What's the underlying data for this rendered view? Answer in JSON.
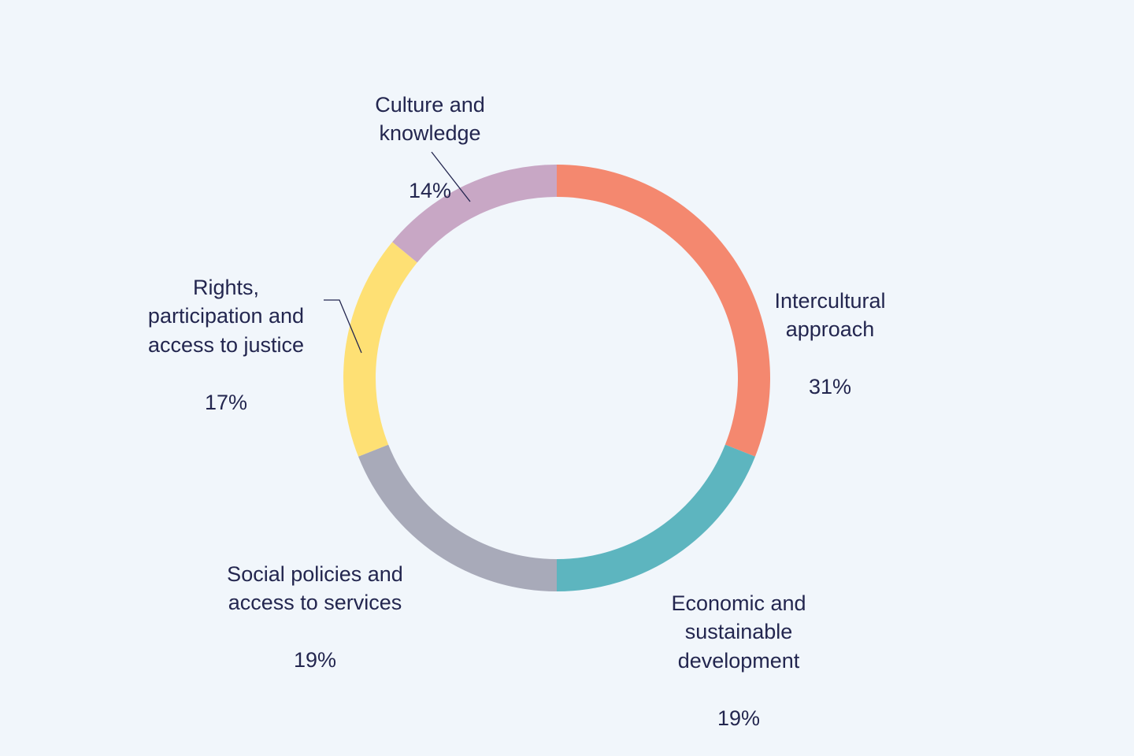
{
  "colors": {
    "background": "#f1f6fb",
    "text": "#23264f",
    "leader_line": "#23264f"
  },
  "chart_data": {
    "type": "pie",
    "variant": "donut",
    "start_angle_deg": 0,
    "direction": "clockwise",
    "slices": [
      {
        "label": "Intercultural\napproach",
        "value": 31,
        "value_text": "31%",
        "color": "#f4886f"
      },
      {
        "label": "Economic and\nsustainable\ndevelopment",
        "value": 19,
        "value_text": "19%",
        "color": "#5db5bf"
      },
      {
        "label": "Social policies and\naccess to services",
        "value": 19,
        "value_text": "19%",
        "color": "#a8aab9"
      },
      {
        "label": "Rights,\nparticipation and\naccess to justice",
        "value": 17,
        "value_text": "17%",
        "color": "#fee074"
      },
      {
        "label": "Culture and\nknowledge",
        "value": 14,
        "value_text": "14%",
        "color": "#c8a7c5"
      }
    ]
  }
}
